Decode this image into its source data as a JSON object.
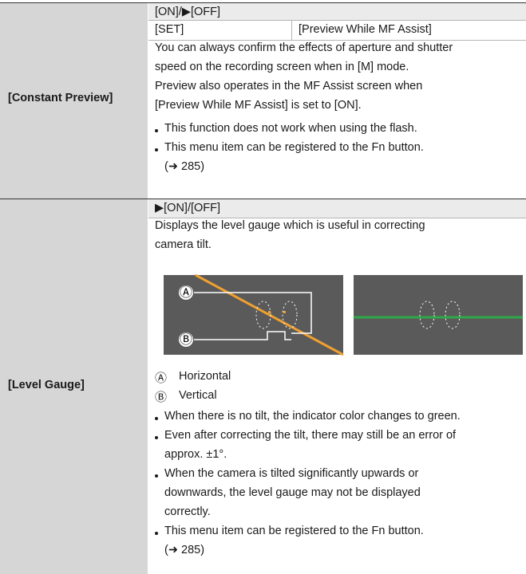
{
  "rows": [
    {
      "label": "[Constant Preview]",
      "options": "[ON]/▶[OFF]",
      "set_label": "[SET]",
      "set_value": "[Preview While MF Assist]",
      "lines": [
        "You can always confirm the effects of aperture and shutter",
        "speed on the recording screen when in [M] mode.",
        "Preview also operates in the MF Assist screen when",
        "[Preview While MF Assist] is set to [ON]."
      ],
      "bullets": [
        [
          "This function does not work when using the flash."
        ],
        [
          "This menu item can be registered to the Fn button.",
          "(➜ 285)"
        ]
      ]
    },
    {
      "label": "[Level Gauge]",
      "options": "▶[ON]/[OFF]",
      "lines": [
        "Displays the level gauge which is useful in correcting",
        "camera tilt."
      ],
      "callouts": [
        "Ⓐ",
        "Ⓑ"
      ],
      "legend": [
        {
          "mark": "Ⓐ",
          "text": "Horizontal"
        },
        {
          "mark": "Ⓑ",
          "text": "Vertical"
        }
      ],
      "bullets": [
        [
          "When there is no tilt, the indicator color changes to green."
        ],
        [
          "Even after correcting the tilt, there may still be an error of",
          "approx. ±1°."
        ],
        [
          "When the camera is tilted significantly upwards or",
          "downwards, the level gauge may not be displayed",
          "correctly."
        ],
        [
          "This menu item can be registered to the Fn button.",
          "(➜ 285)"
        ]
      ]
    }
  ]
}
